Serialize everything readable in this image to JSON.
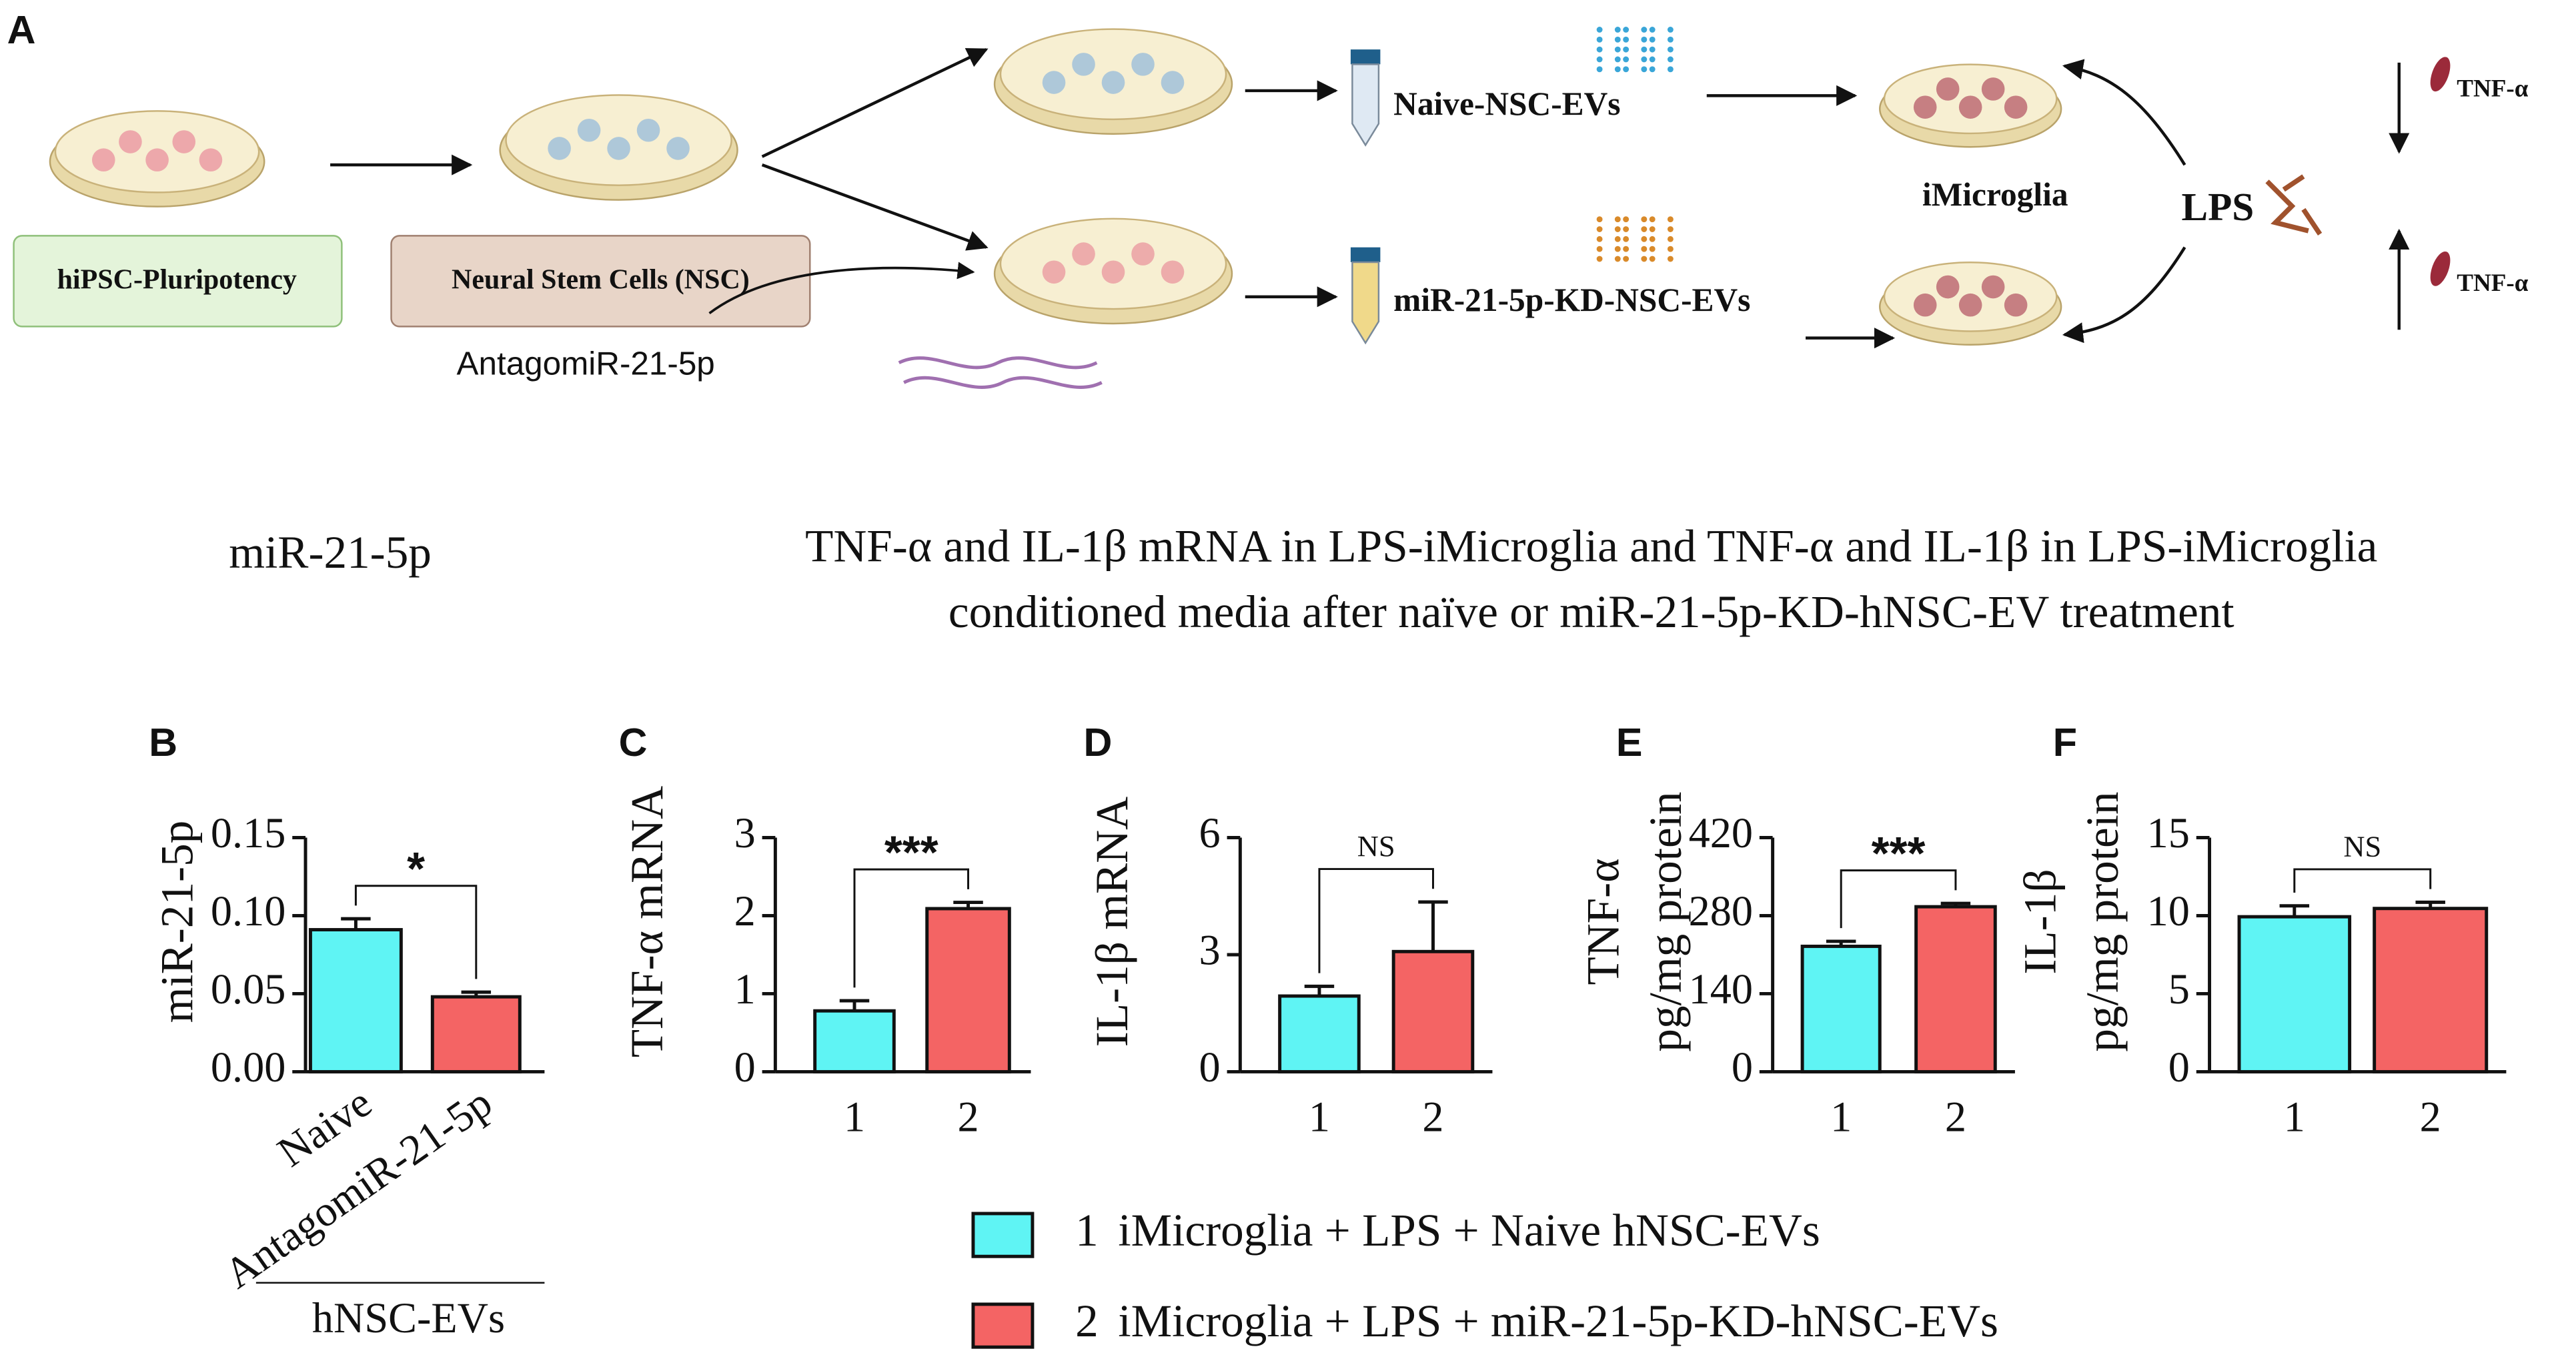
{
  "panel_a": {
    "label": "A",
    "box_hipsc": "hiPSC-Pluripotency",
    "box_nsc": "Neural Stem Cells (NSC)",
    "antagomir": "AntagomiR-21-5p",
    "naive_evs": "Naive-NSC-EVs",
    "kd_evs": "miR-21-5p-KD-NSC-EVs",
    "microglia": "iMicroglia",
    "lps": "LPS",
    "tnf_down": "TNF-α",
    "tnf_up": "TNF-α"
  },
  "header": {
    "left": "miR-21-5p",
    "right_lines": [
      "TNF-α and IL-1β mRNA in LPS-iMicroglia and TNF-α and IL-1β in LPS-iMicroglia",
      "conditioned media after naïve or miR-21-5p-KD-hNSC-EV treatment"
    ]
  },
  "chart_data": [
    {
      "panel": "B",
      "type": "bar",
      "ylabel": [
        "miR-21-5p"
      ],
      "categories": [
        "Naive",
        "AntagomiR-21-5p"
      ],
      "group_label": "hNSC-EVs",
      "values": [
        0.091,
        0.048
      ],
      "errors": [
        0.007,
        0.003
      ],
      "colors": [
        "#5ff4f4",
        "#f46464"
      ],
      "ylim": [
        0,
        0.15
      ],
      "yticks": [
        {
          "value": 0,
          "label": "0.00"
        },
        {
          "value": 0.05,
          "label": "0.05"
        },
        {
          "value": 0.1,
          "label": "0.10"
        },
        {
          "value": 0.15,
          "label": "0.15"
        }
      ],
      "significance": "*"
    },
    {
      "panel": "C",
      "type": "bar",
      "ylabel": [
        "TNF-α mRNA"
      ],
      "categories": [
        "1",
        "2"
      ],
      "values": [
        0.78,
        2.09
      ],
      "errors": [
        0.13,
        0.08
      ],
      "colors": [
        "#5ff4f4",
        "#f46464"
      ],
      "ylim": [
        0,
        3
      ],
      "yticks": [
        0,
        1,
        2,
        3
      ],
      "significance": "***"
    },
    {
      "panel": "D",
      "type": "bar",
      "ylabel": [
        "IL-1β mRNA"
      ],
      "categories": [
        "1",
        "2"
      ],
      "values": [
        1.94,
        3.08
      ],
      "errors": [
        0.25,
        1.27
      ],
      "colors": [
        "#5ff4f4",
        "#f46464"
      ],
      "ylim": [
        0,
        6
      ],
      "yticks": [
        0,
        3,
        6
      ],
      "significance": "NS"
    },
    {
      "panel": "E",
      "type": "bar",
      "ylabel": [
        "TNF-α",
        "pg/mg protein"
      ],
      "categories": [
        "1",
        "2"
      ],
      "values": [
        225,
        296
      ],
      "errors": [
        9,
        6
      ],
      "colors": [
        "#5ff4f4",
        "#f46464"
      ],
      "ylim": [
        0,
        420
      ],
      "yticks": [
        0,
        140,
        280,
        420
      ],
      "significance": "***"
    },
    {
      "panel": "F",
      "type": "bar",
      "ylabel": [
        "IL-1β",
        "pg/mg protein"
      ],
      "categories": [
        "1",
        "2"
      ],
      "values": [
        9.93,
        10.46
      ],
      "errors": [
        0.7,
        0.4
      ],
      "colors": [
        "#5ff4f4",
        "#f46464"
      ],
      "ylim": [
        0,
        15
      ],
      "yticks": [
        0,
        5,
        10,
        15
      ],
      "significance": "NS"
    }
  ],
  "legend": [
    {
      "marker": "1",
      "text": "iMicroglia + LPS + Naive hNSC-EVs",
      "color": "#5ff4f4"
    },
    {
      "marker": "2",
      "text": "iMicroglia + LPS + miR-21-5p-KD-hNSC-EVs",
      "color": "#f46464"
    }
  ]
}
